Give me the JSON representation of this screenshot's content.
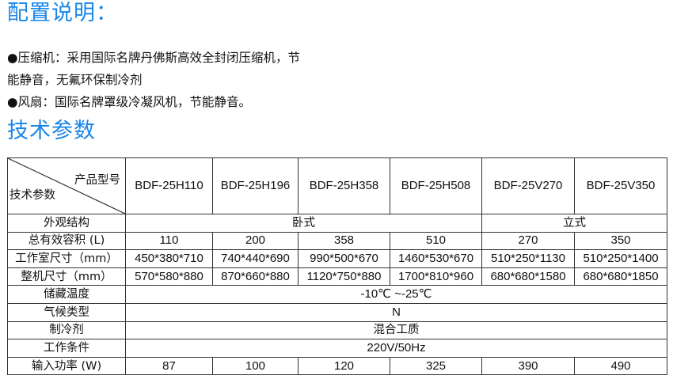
{
  "accent_color": "#1a86e8",
  "config": {
    "title": "配置说明：",
    "lines": [
      "●压缩机：采用国际名牌丹佛斯高效全封闭压缩机，节",
      "能静音，无氟环保制冷剂",
      "●风扇：国际名牌罩级冷凝风机，节能静音。"
    ]
  },
  "specs": {
    "title": "技术参数",
    "corner_top": "产品型号",
    "corner_bottom": "技术参数",
    "models": [
      "BDF-25H110",
      "BDF-25H196",
      "BDF-25H358",
      "BDF-25H508",
      "BDF-25V270",
      "BDF-25V350"
    ],
    "rows": [
      {
        "label": "外观结构",
        "cells": [
          {
            "text": "卧式",
            "span": 4
          },
          {
            "text": "立式",
            "span": 2
          }
        ]
      },
      {
        "label": "总有效容积 (L)",
        "cells": [
          {
            "text": "110"
          },
          {
            "text": "200"
          },
          {
            "text": "358"
          },
          {
            "text": "510"
          },
          {
            "text": "270"
          },
          {
            "text": "350"
          }
        ]
      },
      {
        "label": "工作室尺寸（mm）",
        "cells": [
          {
            "text": "450*380*710"
          },
          {
            "text": "740*440*690"
          },
          {
            "text": "990*500*670"
          },
          {
            "text": "1460*530*670"
          },
          {
            "text": "510*250*1130"
          },
          {
            "text": "510*250*1400"
          }
        ]
      },
      {
        "label": "整机尺寸（mm）",
        "cells": [
          {
            "text": "570*580*880"
          },
          {
            "text": "870*660*880"
          },
          {
            "text": "1120*750*880"
          },
          {
            "text": "1700*810*960"
          },
          {
            "text": "680*680*1580"
          },
          {
            "text": "680*680*1850"
          }
        ]
      },
      {
        "label": "储藏温度",
        "cells": [
          {
            "text": "-10℃ ~-25℃",
            "span": 6
          }
        ]
      },
      {
        "label": "气候类型",
        "cells": [
          {
            "text": "N",
            "span": 6
          }
        ]
      },
      {
        "label": "制冷剂",
        "cells": [
          {
            "text": "混合工质",
            "span": 6
          }
        ]
      },
      {
        "label": "工作条件",
        "cells": [
          {
            "text": "220V/50Hz",
            "span": 6
          }
        ]
      },
      {
        "label": "输入功率 (W)",
        "cells": [
          {
            "text": "87"
          },
          {
            "text": "100"
          },
          {
            "text": "120"
          },
          {
            "text": "325"
          },
          {
            "text": "390"
          },
          {
            "text": "490"
          }
        ]
      }
    ]
  }
}
